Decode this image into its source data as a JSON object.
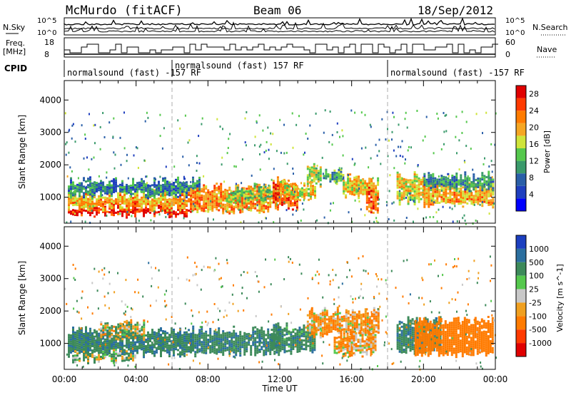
{
  "header": {
    "station": "McMurdo (fitACF)",
    "beam": "Beam 06",
    "date": "18/Sep/2012"
  },
  "noise_panel": {
    "left_label": "N.Sky",
    "right_label": "N.Search",
    "ticks_left": [
      "10^5",
      "10^0"
    ],
    "ticks_right": [
      "10^5",
      "10^0"
    ]
  },
  "freq_panel": {
    "left_label_line1": "Freq.",
    "left_label_line2": "[MHz]",
    "right_label": "Nave",
    "ticks_left": [
      "18",
      "8"
    ],
    "ticks_right": [
      "60",
      "0"
    ]
  },
  "cpid": {
    "label": "CPID",
    "segments": [
      {
        "start_hour": 0,
        "end_hour": 6,
        "text": "normalsound (fast) -157 RF"
      },
      {
        "start_hour": 6,
        "end_hour": 18,
        "text": "normalsound (fast) 157 RF"
      },
      {
        "start_hour": 18,
        "end_hour": 24,
        "text": "normalsound (fast) -157 RF"
      }
    ]
  },
  "chart_data": [
    {
      "type": "heatmap",
      "quantity": "Power",
      "ylabel": "Slant Range [km]",
      "ylim": [
        200,
        4600
      ],
      "yticks": [
        1000,
        2000,
        3000,
        4000
      ],
      "xlim": [
        0,
        24
      ],
      "colorbar": {
        "label": "Power [dB]",
        "range": [
          0,
          30
        ],
        "ticks": [
          4,
          8,
          12,
          16,
          20,
          24,
          28
        ],
        "colors": [
          "#0000ff",
          "#1f3fbf",
          "#2a5fa8",
          "#3a9a6b",
          "#55c84d",
          "#cfe43a",
          "#f5a623",
          "#ff7b00",
          "#ff3a00",
          "#e00000"
        ]
      },
      "bands": [
        {
          "x0": 0.2,
          "x1": 7.0,
          "y0": 500,
          "y1": 700,
          "level": 28
        },
        {
          "x0": 0.2,
          "x1": 7.0,
          "y0": 700,
          "y1": 1100,
          "level": 20
        },
        {
          "x0": 0.2,
          "x1": 7.5,
          "y0": 1100,
          "y1": 1500,
          "level": 9
        },
        {
          "x0": 7.0,
          "x1": 11.5,
          "y0": 600,
          "y1": 1300,
          "level": 22
        },
        {
          "x0": 9.0,
          "x1": 12.0,
          "y0": 900,
          "y1": 1300,
          "level": 14
        },
        {
          "x0": 11.6,
          "x1": 13.0,
          "y0": 700,
          "y1": 1500,
          "level": 24
        },
        {
          "x0": 12.0,
          "x1": 14.0,
          "y0": 1000,
          "y1": 1400,
          "level": 18
        },
        {
          "x0": 13.5,
          "x1": 14.3,
          "y0": 1400,
          "y1": 1900,
          "level": 16
        },
        {
          "x0": 14.4,
          "x1": 15.5,
          "y0": 1500,
          "y1": 1800,
          "level": 12
        },
        {
          "x0": 15.5,
          "x1": 17.5,
          "y0": 1100,
          "y1": 1600,
          "level": 18
        },
        {
          "x0": 16.8,
          "x1": 17.4,
          "y0": 600,
          "y1": 1200,
          "level": 24
        },
        {
          "x0": 18.5,
          "x1": 20.0,
          "y0": 900,
          "y1": 1700,
          "level": 18
        },
        {
          "x0": 20.0,
          "x1": 23.9,
          "y0": 800,
          "y1": 1400,
          "level": 20
        },
        {
          "x0": 20.0,
          "x1": 23.9,
          "y0": 1300,
          "y1": 1700,
          "level": 10
        }
      ]
    },
    {
      "type": "heatmap",
      "quantity": "Velocity",
      "ylabel": "Slant Range [km]",
      "ylim": [
        200,
        4600
      ],
      "yticks": [
        1000,
        2000,
        3000,
        4000
      ],
      "xlim": [
        0,
        24
      ],
      "colorbar": {
        "label": "Velocity [m s^-1]",
        "tick_labels": [
          "1000",
          "500",
          "100",
          "25",
          "-25",
          "-100",
          "-500",
          "-1000"
        ],
        "colors": [
          "#1c3fbf",
          "#2b6f9f",
          "#3d8a5a",
          "#55c84d",
          "#c8c8c8",
          "#f0a020",
          "#ff7b00",
          "#ff3a00",
          "#e00000"
        ]
      },
      "bands": [
        {
          "x0": 0.2,
          "x1": 7.2,
          "y0": 700,
          "y1": 1400,
          "value": 250
        },
        {
          "x0": 0.2,
          "x1": 4.0,
          "y0": 500,
          "y1": 700,
          "value": 60
        },
        {
          "x0": 2.0,
          "x1": 4.5,
          "y0": 1200,
          "y1": 1600,
          "value": 0
        },
        {
          "x0": 7.0,
          "x1": 12.0,
          "y0": 700,
          "y1": 1400,
          "value": 250
        },
        {
          "x0": 11.5,
          "x1": 14.0,
          "y0": 800,
          "y1": 1500,
          "value": 200
        },
        {
          "x0": 13.5,
          "x1": 17.5,
          "y0": 1300,
          "y1": 2000,
          "value": -100
        },
        {
          "x0": 15.0,
          "x1": 17.3,
          "y0": 700,
          "y1": 1300,
          "value": -100
        },
        {
          "x0": 18.5,
          "x1": 21.0,
          "y0": 800,
          "y1": 1700,
          "value": 250
        },
        {
          "x0": 19.5,
          "x1": 23.9,
          "y0": 700,
          "y1": 1700,
          "value": -300
        }
      ]
    }
  ],
  "xaxis": {
    "label": "Time UT",
    "ticks": [
      "00:00",
      "04:00",
      "08:00",
      "12:00",
      "16:00",
      "20:00",
      "00:00"
    ],
    "tick_hours": [
      0,
      4,
      8,
      12,
      16,
      20,
      24
    ]
  }
}
